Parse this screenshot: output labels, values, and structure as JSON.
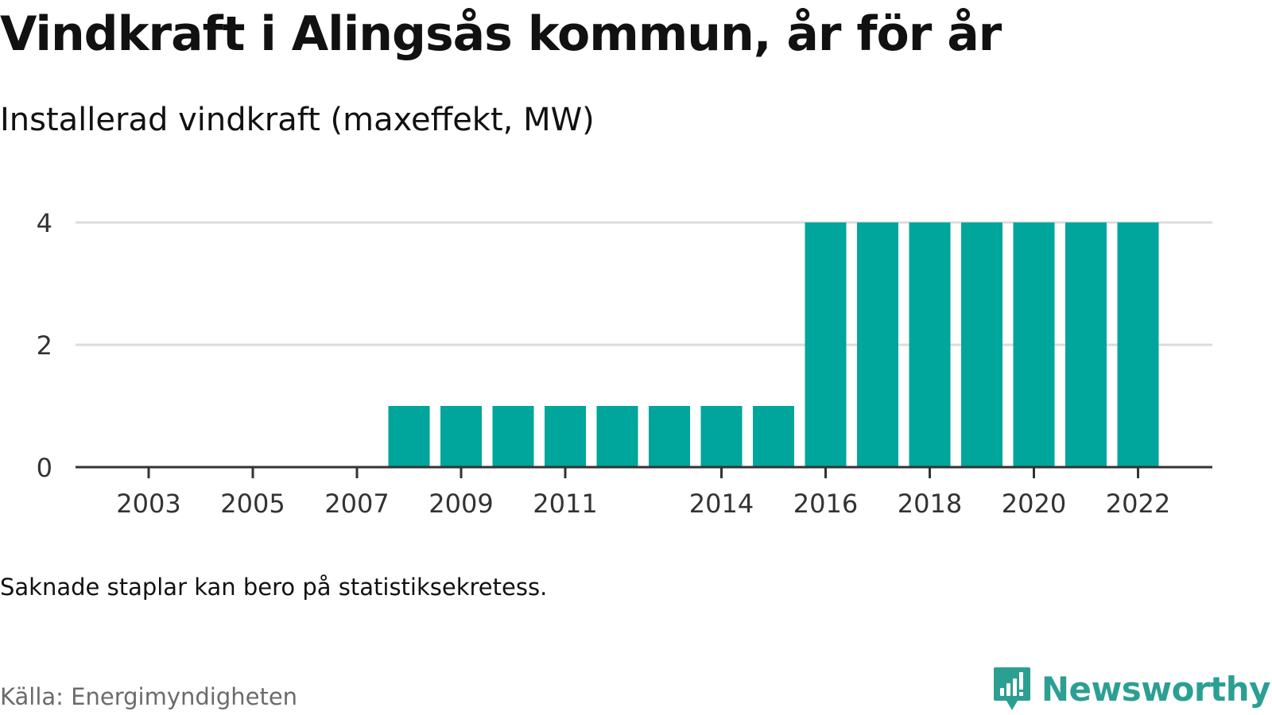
{
  "title": "Vindkraft i Alingsås kommun, år för år",
  "subtitle": "Installerad vindkraft (maxeffekt, MW)",
  "note": "Saknade staplar kan bero på statistiksekretess.",
  "source": "Källa: Energimyndigheten",
  "brand": {
    "name": "Newsworthy",
    "icon": "newsworthy-logo-icon",
    "color": "#2c9f93"
  },
  "colors": {
    "bar": "#00a59c",
    "grid": "#dcdcdc",
    "axis": "#333333"
  },
  "chart_data": {
    "type": "bar",
    "title": "",
    "xlabel": "",
    "ylabel": "",
    "ylim": [
      0,
      4
    ],
    "yticks": [
      0,
      2,
      4
    ],
    "grid": true,
    "x": [
      2002,
      2003,
      2004,
      2005,
      2006,
      2007,
      2008,
      2009,
      2010,
      2011,
      2012,
      2013,
      2014,
      2015,
      2016,
      2017,
      2018,
      2019,
      2020,
      2021,
      2022
    ],
    "values": [
      0,
      0,
      0,
      0,
      0,
      0,
      1,
      1,
      1,
      1,
      1,
      1,
      1,
      1,
      4,
      4,
      4,
      4,
      4,
      4,
      4
    ],
    "xtick_labels": [
      "2003",
      "2005",
      "2007",
      "2009",
      "2011",
      "2014",
      "2016",
      "2018",
      "2020",
      "2022"
    ]
  }
}
